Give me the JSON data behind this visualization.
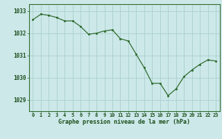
{
  "x": [
    0,
    1,
    2,
    3,
    4,
    5,
    6,
    7,
    8,
    9,
    10,
    11,
    12,
    13,
    14,
    15,
    16,
    17,
    18,
    19,
    20,
    21,
    22,
    23
  ],
  "y": [
    1032.6,
    1032.85,
    1032.8,
    1032.7,
    1032.55,
    1032.55,
    1032.3,
    1031.95,
    1032.0,
    1032.1,
    1032.15,
    1031.75,
    1031.65,
    1031.05,
    1030.45,
    1029.75,
    1029.75,
    1029.2,
    1029.5,
    1030.05,
    1030.35,
    1030.6,
    1030.8,
    1030.75
  ],
  "line_color": "#2d6a2d",
  "marker": "s",
  "marker_size": 2.0,
  "bg_color": "#cce8e8",
  "grid_color": "#aacece",
  "xlabel": "Graphe pression niveau de la mer (hPa)",
  "xlabel_color": "#1a4d1a",
  "tick_color": "#1a4d1a",
  "ylim": [
    1028.5,
    1033.3
  ],
  "yticks": [
    1029,
    1030,
    1031,
    1032,
    1033
  ],
  "xtick_labels": [
    "0",
    "1",
    "2",
    "3",
    "4",
    "5",
    "6",
    "7",
    "8",
    "9",
    "10",
    "11",
    "12",
    "13",
    "14",
    "15",
    "16",
    "17",
    "18",
    "19",
    "20",
    "21",
    "22",
    "23"
  ],
  "spine_color": "#2d6a2d"
}
